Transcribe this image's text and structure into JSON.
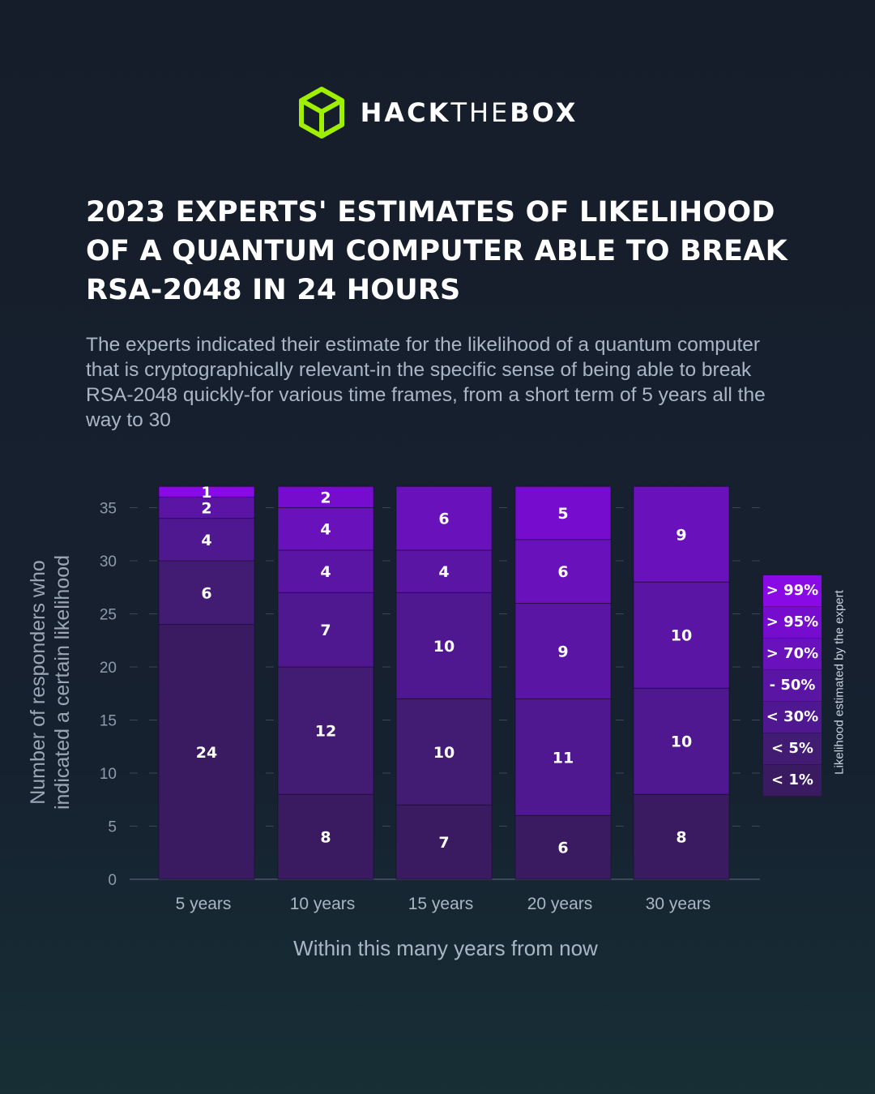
{
  "brand": {
    "logo_icon": "cube-icon",
    "name_bold_1": "HACK",
    "name_light": "THE",
    "name_bold_2": "BOX",
    "accent_color": "#9fef00"
  },
  "title": "2023 EXPERTS' ESTIMATES OF LIKELIHOOD OF A QUANTUM COMPUTER ABLE TO BREAK RSA-2048 IN 24 HOURS",
  "subtitle": "The experts indicated their estimate for the likelihood of a quantum computer that is cryptographically relevant-in the specific sense of being able to break RSA-2048 quickly-for various time frames, from a short term of 5 years all the way to 30",
  "chart_data": {
    "type": "bar",
    "stacked": true,
    "categories": [
      "5 years",
      "10 years",
      "15 years",
      "20 years",
      "30 years"
    ],
    "xlabel": "Within this many years from now",
    "ylabel": "Number of responders who indicated a certain likelihood",
    "ylim": [
      0,
      37
    ],
    "yticks": [
      0,
      5,
      10,
      15,
      20,
      25,
      30,
      35
    ],
    "grid": true,
    "legend_title": "Likelihood estimated by the expert",
    "legend_position": "right",
    "series": [
      {
        "name": "< 1%",
        "color": "#3a1b62",
        "values": [
          24,
          8,
          7,
          6,
          8
        ]
      },
      {
        "name": "< 5%",
        "color": "#421b72",
        "values": [
          6,
          12,
          10,
          0,
          0
        ]
      },
      {
        "name": "< 30%",
        "color": "#4f1790",
        "values": [
          4,
          7,
          10,
          11,
          10
        ]
      },
      {
        "name": "- 50%",
        "color": "#5b15a4",
        "values": [
          2,
          4,
          4,
          9,
          10
        ]
      },
      {
        "name": "> 70%",
        "color": "#6912bc",
        "values": [
          0,
          4,
          6,
          6,
          9
        ]
      },
      {
        "name": "> 95%",
        "color": "#760dce",
        "values": [
          0,
          2,
          0,
          5,
          0
        ]
      },
      {
        "name": "> 99%",
        "color": "#8a0ae6",
        "values": [
          1,
          0,
          0,
          0,
          0
        ]
      }
    ],
    "legend_order": [
      "> 99%",
      "> 95%",
      "> 70%",
      "- 50%",
      "< 30%",
      "< 5%",
      "< 1%"
    ]
  }
}
